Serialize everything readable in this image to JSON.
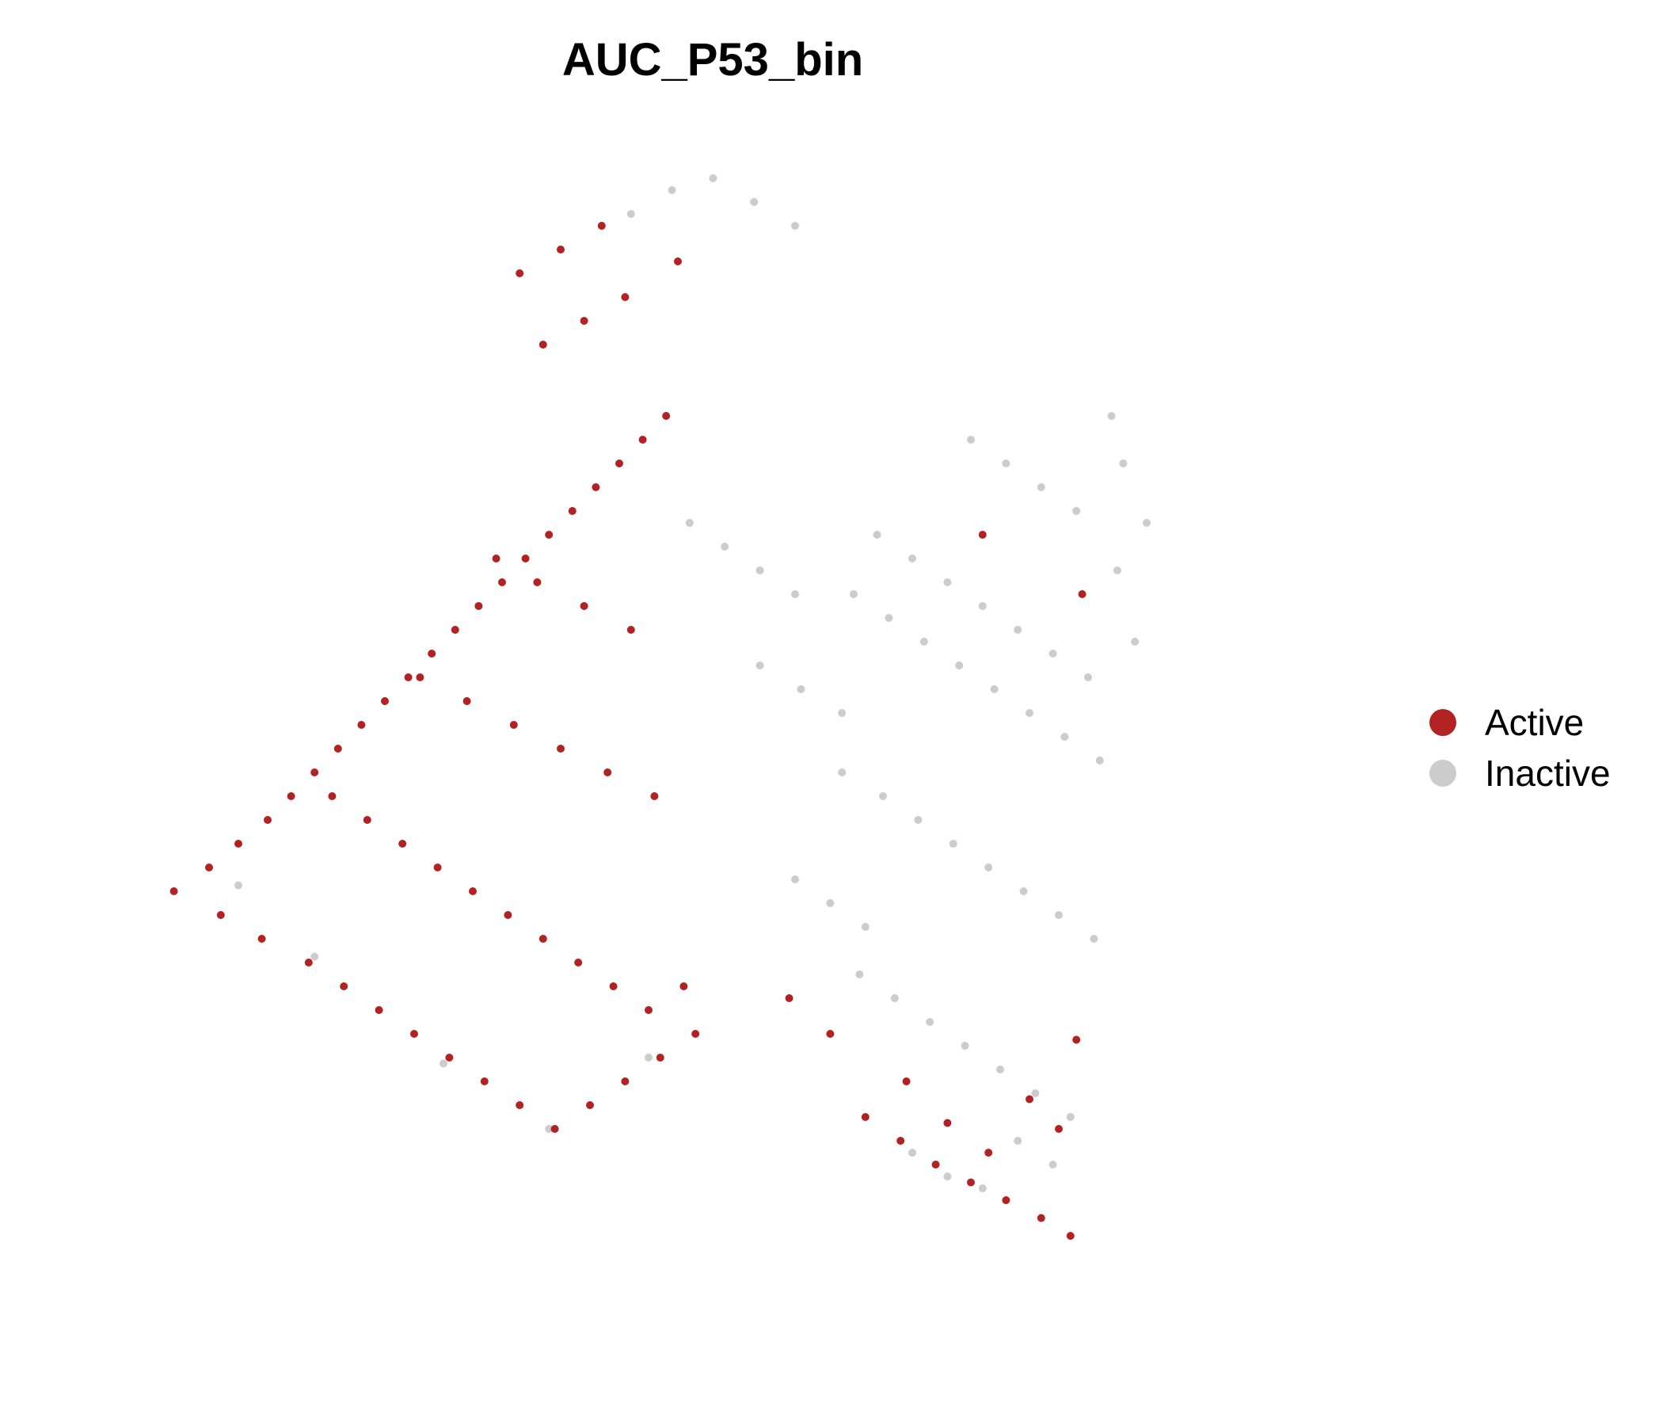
{
  "chart_data": {
    "type": "scatter",
    "title": "AUC_P53_bin",
    "xlabel": "",
    "ylabel": "",
    "axes_visible": false,
    "grid": false,
    "legend_position": "right",
    "series": [
      {
        "name": "Active",
        "color": "#B22222",
        "x": [
          -9.6,
          -9.0,
          -8.5,
          -8.0,
          -7.6,
          -7.2,
          -6.8,
          -6.4,
          -6.0,
          -5.6,
          -5.2,
          -4.8,
          -4.4,
          -4.0,
          -3.6,
          -3.2,
          -2.8,
          -2.4,
          -2.0,
          -1.6,
          -1.2,
          -8.8,
          -8.1,
          -7.3,
          -6.7,
          -6.1,
          -5.5,
          -4.9,
          -4.3,
          -3.7,
          -3.1,
          -2.5,
          -1.9,
          -1.3,
          -0.7,
          -6.9,
          -6.3,
          -5.7,
          -5.1,
          -4.5,
          -3.9,
          -3.3,
          -2.7,
          -2.1,
          -1.5,
          -0.9,
          -5.4,
          -4.6,
          -3.8,
          -3.0,
          -2.2,
          -1.4,
          -4.1,
          -3.4,
          -2.6,
          -1.8,
          -3.7,
          -3.0,
          -2.3,
          -3.3,
          -2.6,
          -1.9,
          -1.0,
          2.2,
          2.8,
          3.4,
          4.0,
          4.6,
          5.2,
          5.7,
          5.5,
          5.8,
          5.0,
          4.3,
          3.6,
          2.9,
          0.9,
          1.6,
          4.2,
          5.9
        ],
        "y": [
          -3.0,
          -2.6,
          -2.2,
          -1.8,
          -1.4,
          -1.0,
          -0.6,
          -0.2,
          0.2,
          0.6,
          1.0,
          1.4,
          1.8,
          2.2,
          2.6,
          3.0,
          3.4,
          3.8,
          4.2,
          4.6,
          5.0,
          -3.4,
          -3.8,
          -4.2,
          -4.6,
          -5.0,
          -5.4,
          -5.8,
          -6.2,
          -6.6,
          -7.0,
          -6.6,
          -6.2,
          -5.8,
          -5.4,
          -1.4,
          -1.8,
          -2.2,
          -2.6,
          -3.0,
          -3.4,
          -3.8,
          -4.2,
          -4.6,
          -5.0,
          -4.6,
          0.6,
          0.2,
          -0.2,
          -0.6,
          -1.0,
          -1.4,
          2.6,
          2.2,
          1.8,
          1.4,
          7.4,
          7.8,
          8.2,
          6.2,
          6.6,
          7.0,
          7.6,
          -6.8,
          -7.2,
          -7.6,
          -7.9,
          -8.2,
          -8.5,
          -8.8,
          -7.0,
          -5.5,
          -6.5,
          -7.4,
          -6.9,
          -6.2,
          -4.8,
          -5.4,
          3.0,
          2.0
        ]
      },
      {
        "name": "Inactive",
        "color": "#CCCCCC",
        "x": [
          2.0,
          2.6,
          3.2,
          3.8,
          4.4,
          5.0,
          5.6,
          6.2,
          6.6,
          7.0,
          2.4,
          3.0,
          3.6,
          4.2,
          4.8,
          5.4,
          6.0,
          6.5,
          1.8,
          2.5,
          3.1,
          3.7,
          4.3,
          4.9,
          5.5,
          6.1,
          6.8,
          4.0,
          4.6,
          5.2,
          5.8,
          6.4,
          1.0,
          1.6,
          2.2,
          0.4,
          1.1,
          1.8,
          -0.8,
          -0.2,
          0.4,
          1.0,
          -1.8,
          -1.1,
          -0.4,
          0.3,
          1.0,
          2.1,
          2.7,
          3.3,
          3.9,
          4.5,
          5.1,
          5.7,
          3.0,
          3.6,
          4.2,
          4.8,
          5.4,
          -8.5,
          -7.2,
          -5.0,
          -3.2,
          -1.5
        ],
        "y": [
          2.0,
          1.6,
          1.2,
          0.8,
          0.4,
          0.0,
          -0.4,
          -0.8,
          4.2,
          3.2,
          3.0,
          2.6,
          2.2,
          1.8,
          1.4,
          1.0,
          0.6,
          2.4,
          -1.0,
          -1.4,
          -1.8,
          -2.2,
          -2.6,
          -3.0,
          -3.4,
          -3.8,
          1.2,
          4.6,
          4.2,
          3.8,
          3.4,
          5.0,
          -2.8,
          -3.2,
          -3.6,
          0.8,
          0.4,
          0.0,
          3.2,
          2.8,
          2.4,
          2.0,
          8.4,
          8.8,
          9.0,
          8.6,
          8.2,
          -4.4,
          -4.8,
          -5.2,
          -5.6,
          -6.0,
          -6.4,
          -6.8,
          -7.4,
          -7.8,
          -8.0,
          -7.2,
          -7.6,
          -2.9,
          -4.1,
          -5.9,
          -7.0,
          -5.8
        ]
      }
    ],
    "legend": [
      "Active",
      "Inactive"
    ]
  }
}
